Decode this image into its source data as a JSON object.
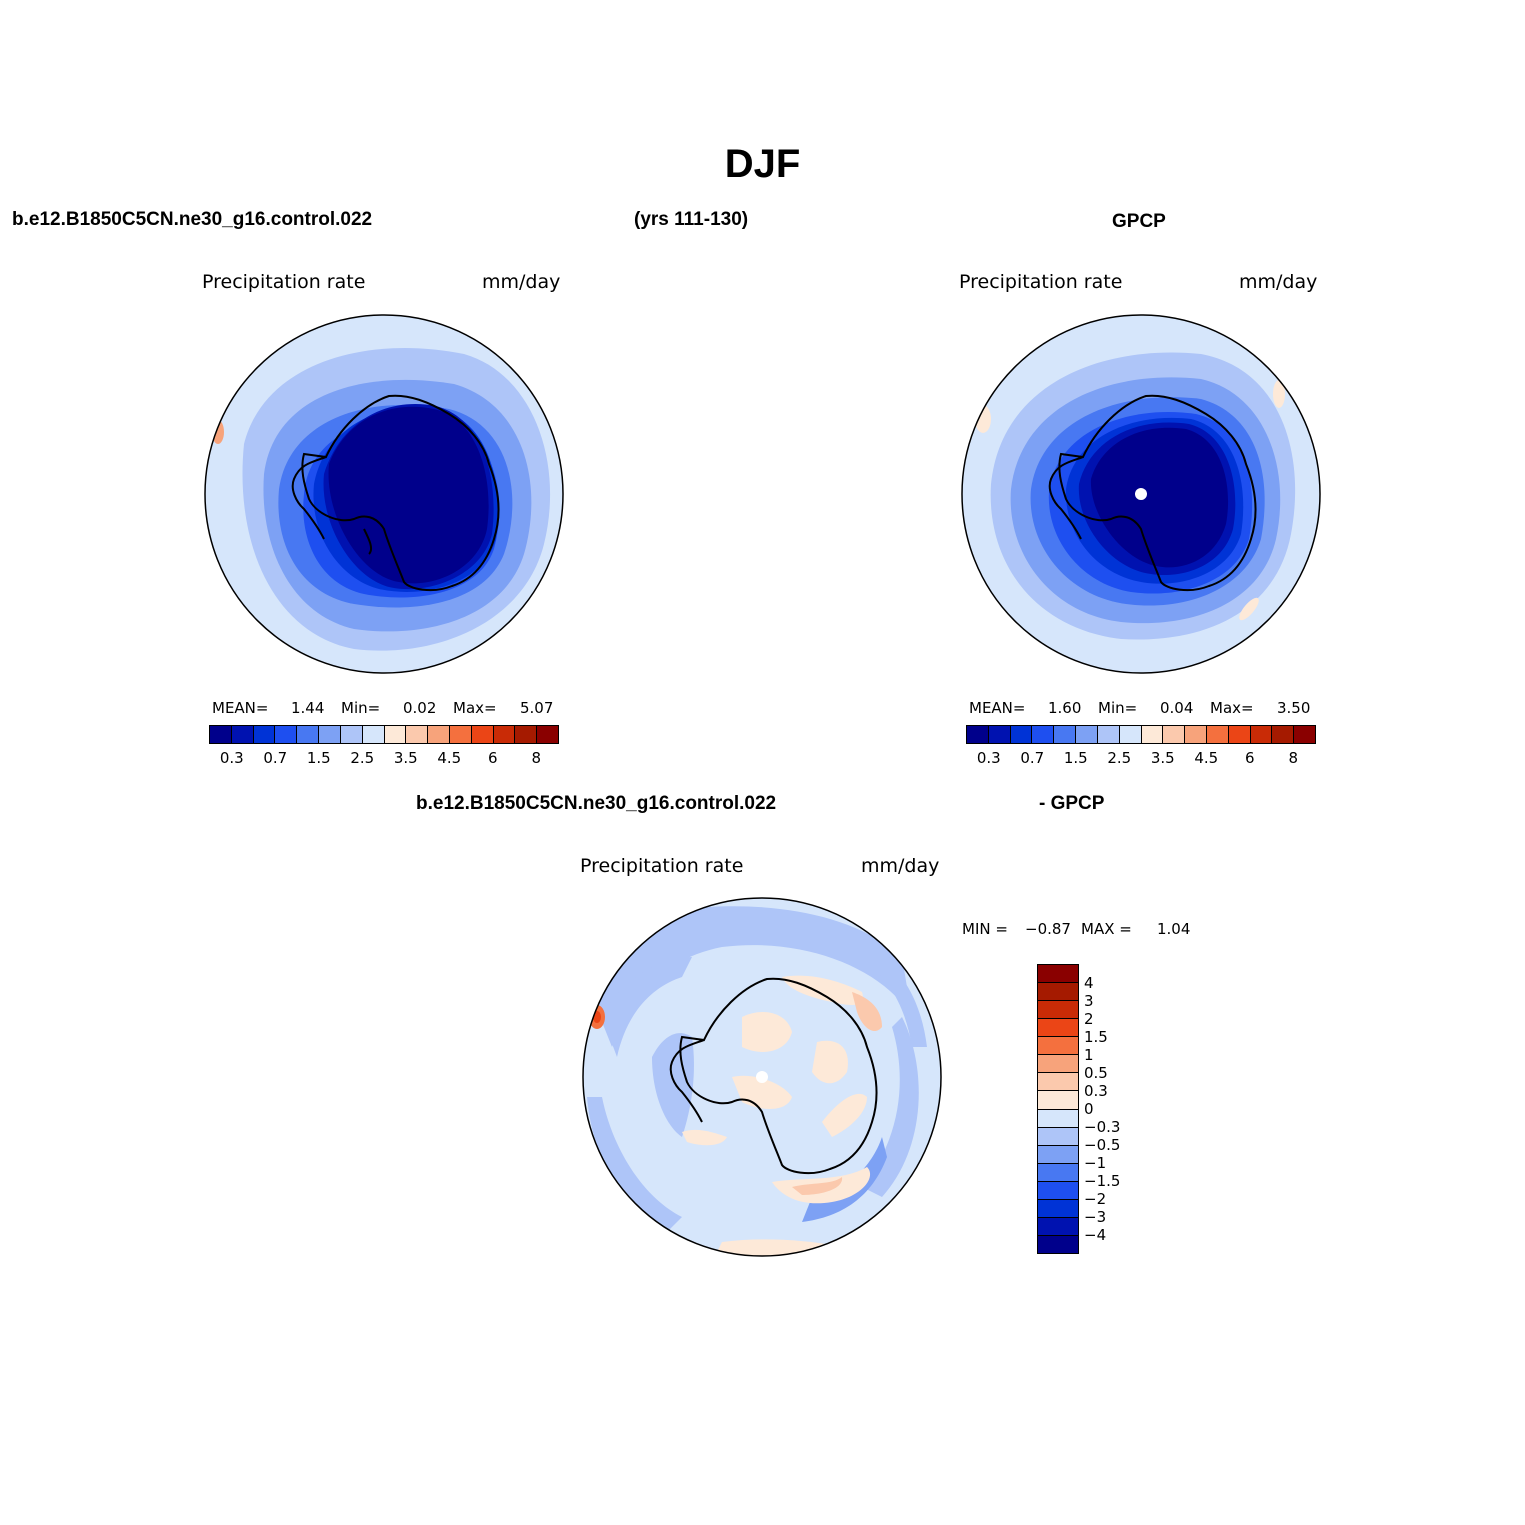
{
  "title": "DJF",
  "header": {
    "case_name": "b.e12.B1850C5CN.ne30_g16.control.022",
    "years": "(yrs 111-130)",
    "obs_name": "GPCP"
  },
  "colors": {
    "scale": [
      "#00008b",
      "#0012b0",
      "#0033d6",
      "#1e4ff0",
      "#4878f2",
      "#7da1f4",
      "#aec5f8",
      "#d6e6fb",
      "#fde9d8",
      "#fbc9ad",
      "#f7a37b",
      "#f4703e",
      "#eb4516",
      "#c92b06",
      "#a51a00",
      "#8a0000"
    ],
    "land_line": "#000000",
    "pole_marker": "#ffffff"
  },
  "panels": {
    "model": {
      "variable": "Precipitation rate",
      "units": "mm/day",
      "mean_label": "MEAN=",
      "mean": "1.44",
      "min_label": "Min=",
      "min": "0.02",
      "max_label": "Max=",
      "max": "5.07",
      "ticks": [
        "0.3",
        "0.7",
        "1.5",
        "2.5",
        "3.5",
        "4.5",
        "6",
        "8"
      ]
    },
    "obs": {
      "variable": "Precipitation rate",
      "units": "mm/day",
      "mean_label": "MEAN=",
      "mean": "1.60",
      "min_label": "Min=",
      "min": "0.04",
      "max_label": "Max=",
      "max": "3.50",
      "ticks": [
        "0.3",
        "0.7",
        "1.5",
        "2.5",
        "3.5",
        "4.5",
        "6",
        "8"
      ]
    },
    "diff": {
      "title_left": "b.e12.B1850C5CN.ne30_g16.control.022",
      "title_right": "- GPCP",
      "variable": "Precipitation rate",
      "units": "mm/day",
      "min_label": "MIN =",
      "min": "−0.87",
      "max_label": "MAX =",
      "max": "1.04",
      "ticks": [
        "4",
        "3",
        "2",
        "1.5",
        "1",
        "0.5",
        "0.3",
        "0",
        "−0.3",
        "−0.5",
        "−1",
        "−1.5",
        "−2",
        "−3",
        "−4"
      ]
    }
  }
}
